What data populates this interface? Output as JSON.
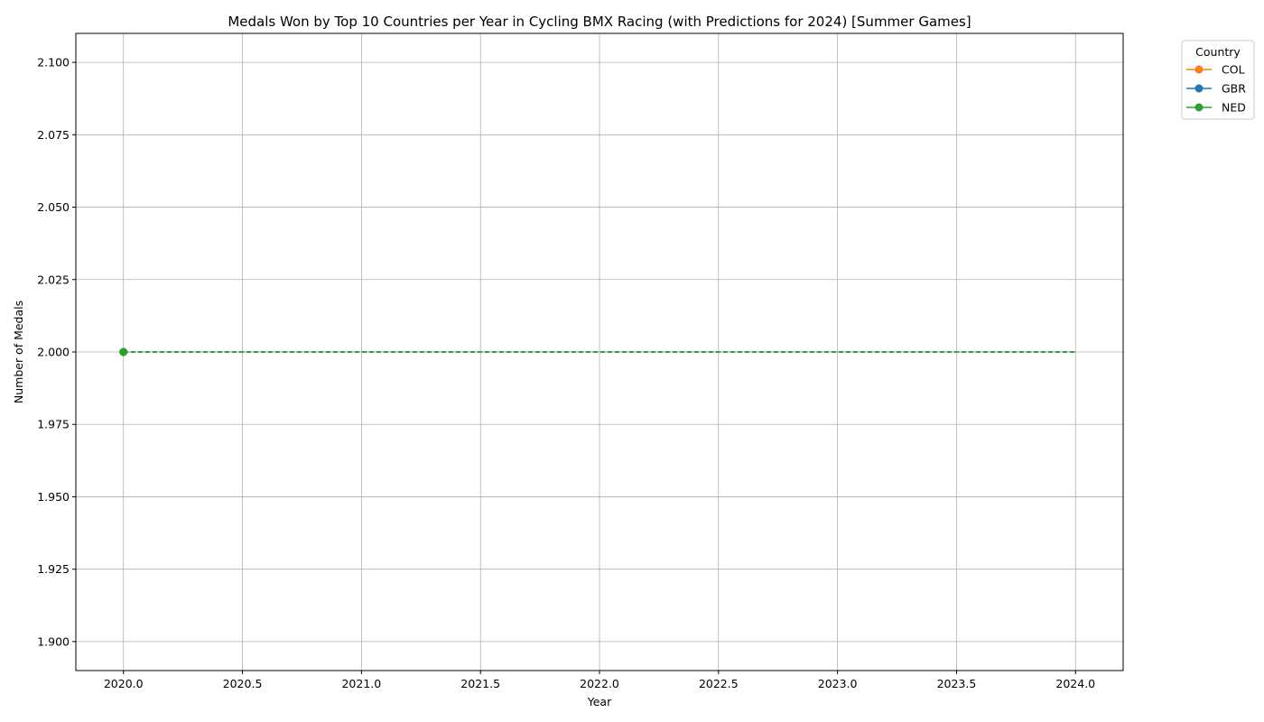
{
  "chart_data": {
    "type": "line",
    "title": "Medals Won by Top 10 Countries per Year in Cycling BMX Racing (with Predictions for 2024) [Summer Games]",
    "xlabel": "Year",
    "ylabel": "Number of Medals",
    "xlim": [
      2019.8,
      2024.2
    ],
    "ylim": [
      1.89,
      2.11
    ],
    "x_ticks": [
      2020.0,
      2020.5,
      2021.0,
      2021.5,
      2022.0,
      2022.5,
      2023.0,
      2023.5,
      2024.0
    ],
    "x_tick_labels": [
      "2020.0",
      "2020.5",
      "2021.0",
      "2021.5",
      "2022.0",
      "2022.5",
      "2023.0",
      "2023.5",
      "2024.0"
    ],
    "y_ticks": [
      1.9,
      1.925,
      1.95,
      1.975,
      2.0,
      2.025,
      2.05,
      2.075,
      2.1
    ],
    "y_tick_labels": [
      "1.900",
      "1.925",
      "1.950",
      "1.975",
      "2.000",
      "2.025",
      "2.050",
      "2.075",
      "2.100"
    ],
    "grid": true,
    "legend": {
      "title": "Country",
      "placement": "outside-top-right"
    },
    "series": [
      {
        "name": "COL",
        "color": "#ff7f0e",
        "actual": [
          {
            "x": 2020,
            "y": 2
          }
        ],
        "prediction": [
          {
            "x": 2020,
            "y": 2
          },
          {
            "x": 2024,
            "y": 2
          }
        ]
      },
      {
        "name": "GBR",
        "color": "#1f77b4",
        "actual": [
          {
            "x": 2020,
            "y": 2
          }
        ],
        "prediction": [
          {
            "x": 2020,
            "y": 2
          },
          {
            "x": 2024,
            "y": 2
          }
        ]
      },
      {
        "name": "NED",
        "color": "#2ca02c",
        "actual": [
          {
            "x": 2020,
            "y": 2
          }
        ],
        "prediction": [
          {
            "x": 2020,
            "y": 2
          },
          {
            "x": 2024,
            "y": 2
          }
        ]
      }
    ]
  }
}
